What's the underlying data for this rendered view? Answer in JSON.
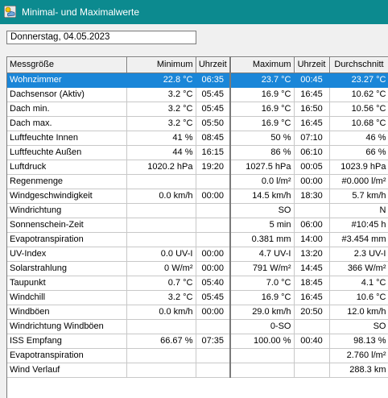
{
  "window": {
    "title": "Minimal- und Maximalwerte",
    "icon": "weather-app-icon"
  },
  "date_select": {
    "value": "Donnerstag, 04.05.2023"
  },
  "table": {
    "headers": {
      "name": "Messgröße",
      "min": "Minimum",
      "min_time": "Uhrzeit",
      "max": "Maximum",
      "max_time": "Uhrzeit",
      "avg": "Durchschnitt"
    },
    "selected_row": 0,
    "rows": [
      {
        "name": "Wohnzimmer",
        "min": "22.8 °C",
        "min_time": "06:35",
        "max": "23.7 °C",
        "max_time": "00:45",
        "avg": "23.27 °C"
      },
      {
        "name": "Dachsensor (Aktiv)",
        "min": "3.2 °C",
        "min_time": "05:45",
        "max": "16.9 °C",
        "max_time": "16:45",
        "avg": "10.62 °C"
      },
      {
        "name": "Dach min.",
        "min": "3.2 °C",
        "min_time": "05:45",
        "max": "16.9 °C",
        "max_time": "16:50",
        "avg": "10.56 °C"
      },
      {
        "name": "Dach max.",
        "min": "3.2 °C",
        "min_time": "05:50",
        "max": "16.9 °C",
        "max_time": "16:45",
        "avg": "10.68 °C"
      },
      {
        "name": "Luftfeuchte Innen",
        "min": "41 %",
        "min_time": "08:45",
        "max": "50 %",
        "max_time": "07:10",
        "avg": "46 %"
      },
      {
        "name": "Luftfeuchte Außen",
        "min": "44 %",
        "min_time": "16:15",
        "max": "86 %",
        "max_time": "06:10",
        "avg": "66 %"
      },
      {
        "name": "Luftdruck",
        "min": "1020.2 hPa",
        "min_time": "19:20",
        "max": "1027.5 hPa",
        "max_time": "00:05",
        "avg": "1023.9 hPa"
      },
      {
        "name": "Regenmenge",
        "min": "",
        "min_time": "",
        "max": "0.0 l/m²",
        "max_time": "00:00",
        "avg": "#0.000 l/m²"
      },
      {
        "name": "Windgeschwindigkeit",
        "min": "0.0 km/h",
        "min_time": "00:00",
        "max": "14.5 km/h",
        "max_time": "18:30",
        "avg": "5.7 km/h"
      },
      {
        "name": "Windrichtung",
        "min": "",
        "min_time": "",
        "max": "SO",
        "max_time": "",
        "avg": "N"
      },
      {
        "name": "Sonnenschein-Zeit",
        "min": "",
        "min_time": "",
        "max": "5 min",
        "max_time": "06:00",
        "avg": "#10:45 h"
      },
      {
        "name": "Evapotranspiration",
        "min": "",
        "min_time": "",
        "max": "0.381 mm",
        "max_time": "14:00",
        "avg": "#3.454 mm"
      },
      {
        "name": "UV-Index",
        "min": "0.0 UV-I",
        "min_time": "00:00",
        "max": "4.7 UV-I",
        "max_time": "13:20",
        "avg": "2.3 UV-I"
      },
      {
        "name": "Solarstrahlung",
        "min": "0 W/m²",
        "min_time": "00:00",
        "max": "791 W/m²",
        "max_time": "14:45",
        "avg": "366 W/m²"
      },
      {
        "name": "Taupunkt",
        "min": "0.7 °C",
        "min_time": "05:40",
        "max": "7.0 °C",
        "max_time": "18:45",
        "avg": "4.1 °C"
      },
      {
        "name": "Windchill",
        "min": "3.2 °C",
        "min_time": "05:45",
        "max": "16.9 °C",
        "max_time": "16:45",
        "avg": "10.6 °C"
      },
      {
        "name": "Windböen",
        "min": "0.0 km/h",
        "min_time": "00:00",
        "max": "29.0 km/h",
        "max_time": "20:50",
        "avg": "12.0 km/h"
      },
      {
        "name": "Windrichtung Windböen",
        "min": "",
        "min_time": "",
        "max": "0-SO",
        "max_time": "",
        "avg": "SO"
      },
      {
        "name": "ISS Empfang",
        "min": "66.67 %",
        "min_time": "07:35",
        "max": "100.00 %",
        "max_time": "00:40",
        "avg": "98.13 %"
      },
      {
        "name": "Evapotranspiration",
        "min": "",
        "min_time": "",
        "max": "",
        "max_time": "",
        "avg": "2.760 l/m²"
      },
      {
        "name": "Wind Verlauf",
        "min": "",
        "min_time": "",
        "max": "",
        "max_time": "",
        "avg": "288.3 km"
      }
    ]
  }
}
